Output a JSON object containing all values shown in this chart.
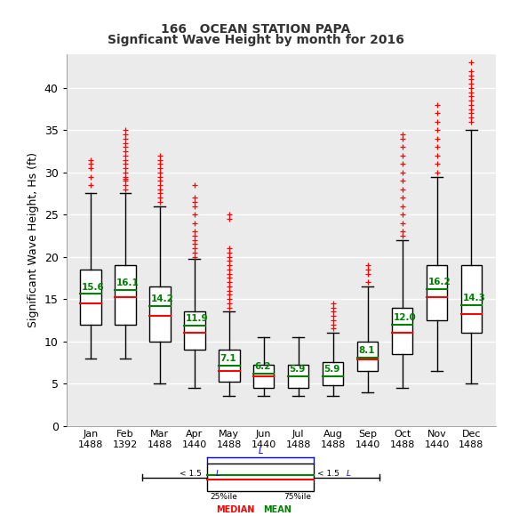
{
  "title1": "166   OCEAN STATION PAPA",
  "title2": "Signficant Wave Height by month for 2016",
  "ylabel": "Significant Wave Height, Hs (ft)",
  "months": [
    "Jan",
    "Feb",
    "Mar",
    "Apr",
    "May",
    "Jun",
    "Jul",
    "Aug",
    "Sep",
    "Oct",
    "Nov",
    "Dec"
  ],
  "counts": [
    1488,
    1392,
    1488,
    1440,
    1488,
    1440,
    1488,
    1488,
    1440,
    1488,
    1440,
    1488
  ],
  "ylim": [
    0,
    44
  ],
  "yticks": [
    0,
    5,
    10,
    15,
    20,
    25,
    30,
    35,
    40
  ],
  "boxes": [
    {
      "q1": 12.0,
      "median": 14.5,
      "q3": 18.5,
      "whislo": 8.0,
      "whishi": 27.5,
      "mean": 15.6
    },
    {
      "q1": 12.0,
      "median": 15.2,
      "q3": 19.0,
      "whislo": 8.0,
      "whishi": 27.5,
      "mean": 16.1
    },
    {
      "q1": 10.0,
      "median": 13.0,
      "q3": 16.5,
      "whislo": 5.0,
      "whishi": 26.0,
      "mean": 14.2
    },
    {
      "q1": 9.0,
      "median": 11.0,
      "q3": 13.5,
      "whislo": 4.5,
      "whishi": 19.8,
      "mean": 11.9
    },
    {
      "q1": 5.2,
      "median": 6.5,
      "q3": 9.0,
      "whislo": 3.5,
      "whishi": 13.5,
      "mean": 7.1
    },
    {
      "q1": 4.5,
      "median": 5.8,
      "q3": 7.2,
      "whislo": 3.5,
      "whishi": 10.5,
      "mean": 6.2
    },
    {
      "q1": 4.5,
      "median": 5.8,
      "q3": 7.2,
      "whislo": 3.5,
      "whishi": 10.5,
      "mean": 5.9
    },
    {
      "q1": 4.8,
      "median": 5.8,
      "q3": 7.5,
      "whislo": 3.5,
      "whishi": 11.0,
      "mean": 5.9
    },
    {
      "q1": 6.5,
      "median": 7.8,
      "q3": 10.0,
      "whislo": 4.0,
      "whishi": 16.5,
      "mean": 8.1
    },
    {
      "q1": 8.5,
      "median": 11.0,
      "q3": 14.0,
      "whislo": 4.5,
      "whishi": 22.0,
      "mean": 12.0
    },
    {
      "q1": 12.5,
      "median": 15.2,
      "q3": 19.0,
      "whislo": 6.5,
      "whishi": 29.5,
      "mean": 16.2
    },
    {
      "q1": 11.0,
      "median": 13.2,
      "q3": 19.0,
      "whislo": 5.0,
      "whishi": 35.0,
      "mean": 14.3
    }
  ],
  "outliers": [
    [
      28.5,
      29.5,
      30.5,
      31.0,
      31.5
    ],
    [
      28.0,
      28.5,
      29.0,
      29.2,
      29.5,
      30.0,
      30.5,
      31.0,
      31.5,
      32.0,
      32.5,
      33.0,
      33.5,
      34.0,
      34.5,
      35.0
    ],
    [
      26.5,
      27.0,
      27.5,
      28.0,
      28.5,
      29.0,
      29.5,
      30.0,
      30.5,
      31.0,
      31.5,
      32.0
    ],
    [
      20.0,
      20.5,
      21.0,
      21.5,
      22.0,
      22.5,
      23.0,
      24.0,
      25.0,
      26.0,
      26.5,
      27.0,
      28.5
    ],
    [
      14.0,
      14.5,
      15.0,
      15.5,
      16.0,
      16.5,
      17.0,
      17.5,
      18.0,
      18.5,
      19.0,
      19.5,
      20.0,
      20.5,
      21.0,
      24.5,
      25.0
    ],
    [],
    [],
    [
      11.5,
      12.0,
      12.5,
      13.0,
      13.5,
      14.0,
      14.5
    ],
    [
      17.0,
      18.0,
      18.5,
      19.0
    ],
    [
      22.5,
      23.0,
      24.0,
      25.0,
      26.0,
      27.0,
      28.0,
      29.0,
      30.0,
      31.0,
      32.0,
      33.0,
      34.0,
      34.5
    ],
    [
      30.0,
      31.0,
      32.0,
      33.0,
      34.0,
      35.0,
      36.0,
      37.0,
      38.0
    ],
    [
      36.0,
      36.5,
      37.0,
      37.5,
      38.0,
      38.5,
      39.0,
      39.5,
      40.0,
      40.5,
      41.0,
      41.5,
      42.0,
      43.0
    ]
  ],
  "background_color": "#ebebeb",
  "box_color": "white",
  "median_color": "red",
  "mean_color": "green",
  "outlier_color": "red",
  "whisker_color": "black",
  "box_edge_color": "black",
  "grid_color": "white"
}
